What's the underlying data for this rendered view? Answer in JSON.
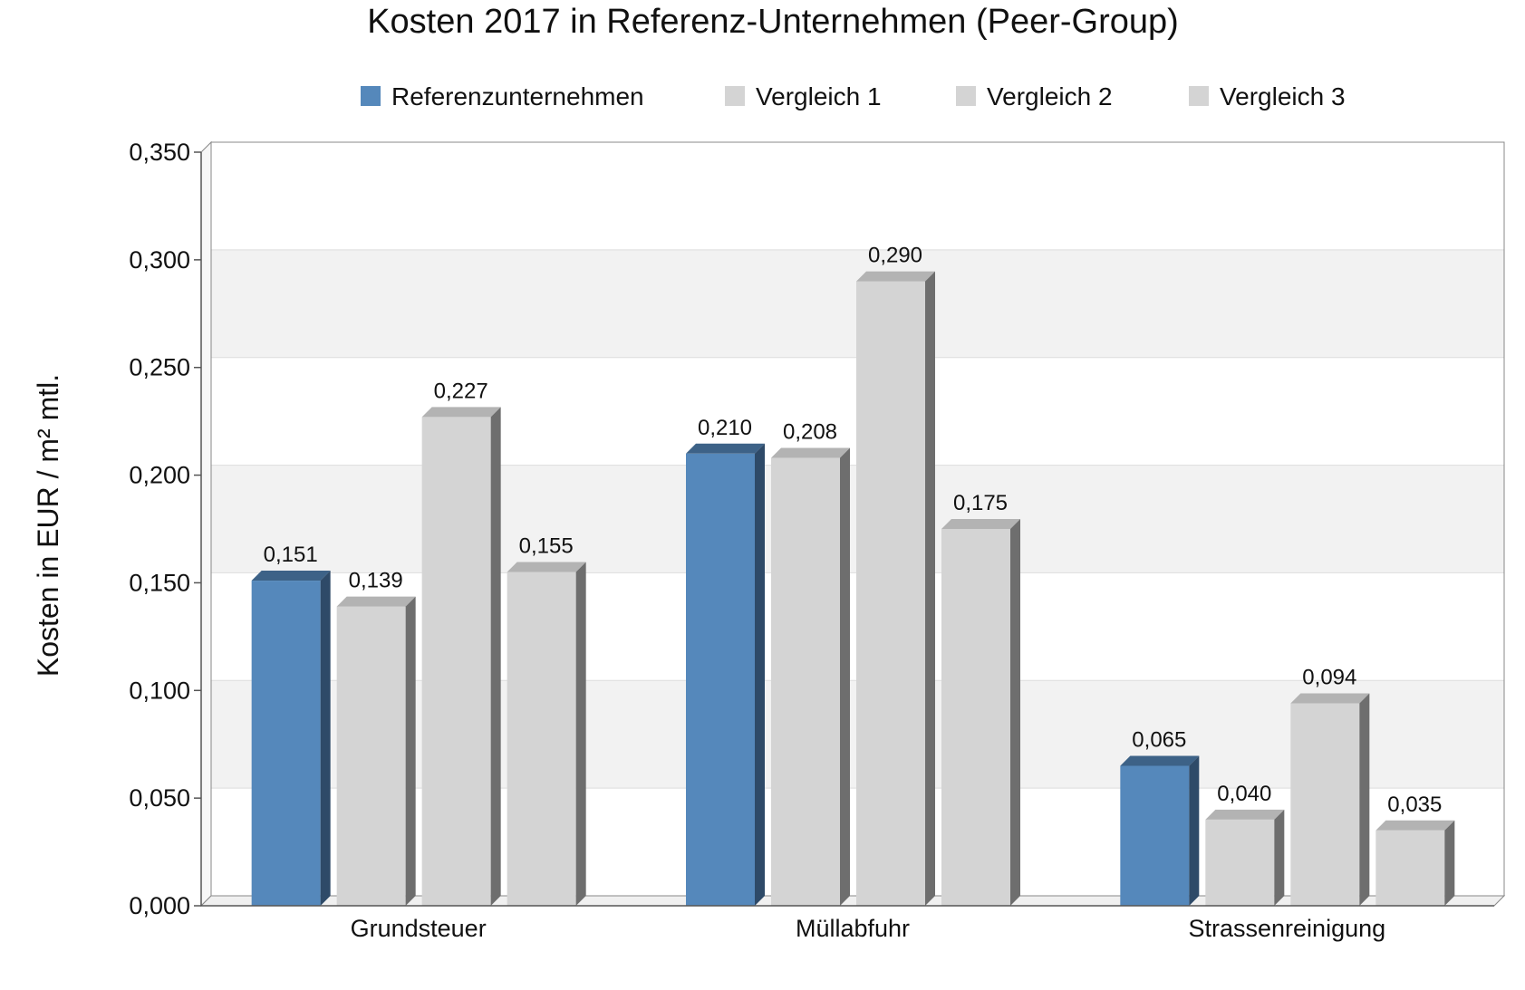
{
  "chart_data": {
    "type": "bar",
    "title": "Kosten 2017 in Referenz-Unternehmen (Peer-Group)",
    "ylabel": "Kosten in EUR / m² mtl.",
    "xlabel": "",
    "categories": [
      "Grundsteuer",
      "Müllabfuhr",
      "Strassenreinigung"
    ],
    "series": [
      {
        "name": "Referenzunternehmen",
        "values": [
          0.151,
          0.21,
          0.065
        ],
        "labels": [
          "0,151",
          "0,210",
          "0,065"
        ],
        "color": "#5588bb"
      },
      {
        "name": "Vergleich 1",
        "values": [
          0.139,
          0.208,
          0.04
        ],
        "labels": [
          "0,139",
          "0,208",
          "0,040"
        ],
        "color": "#d4d4d4"
      },
      {
        "name": "Vergleich 2",
        "values": [
          0.227,
          0.29,
          0.094
        ],
        "labels": [
          "0,227",
          "0,290",
          "0,094"
        ],
        "color": "#d4d4d4"
      },
      {
        "name": "Vergleich 3",
        "values": [
          0.155,
          0.175,
          0.035
        ],
        "labels": [
          "0,155",
          "0,175",
          "0,035"
        ],
        "color": "#d4d4d4"
      }
    ],
    "ylim": [
      0,
      0.35
    ],
    "yticks": [
      0,
      0.05,
      0.1,
      0.15,
      0.2,
      0.25,
      0.3,
      0.35
    ],
    "ytick_labels": [
      "0,000",
      "0,050",
      "0,100",
      "0,150",
      "0,200",
      "0,250",
      "0,300",
      "0,350"
    ],
    "grid": "alternating-bands",
    "legend_position": "top",
    "style": "3d-bars"
  }
}
